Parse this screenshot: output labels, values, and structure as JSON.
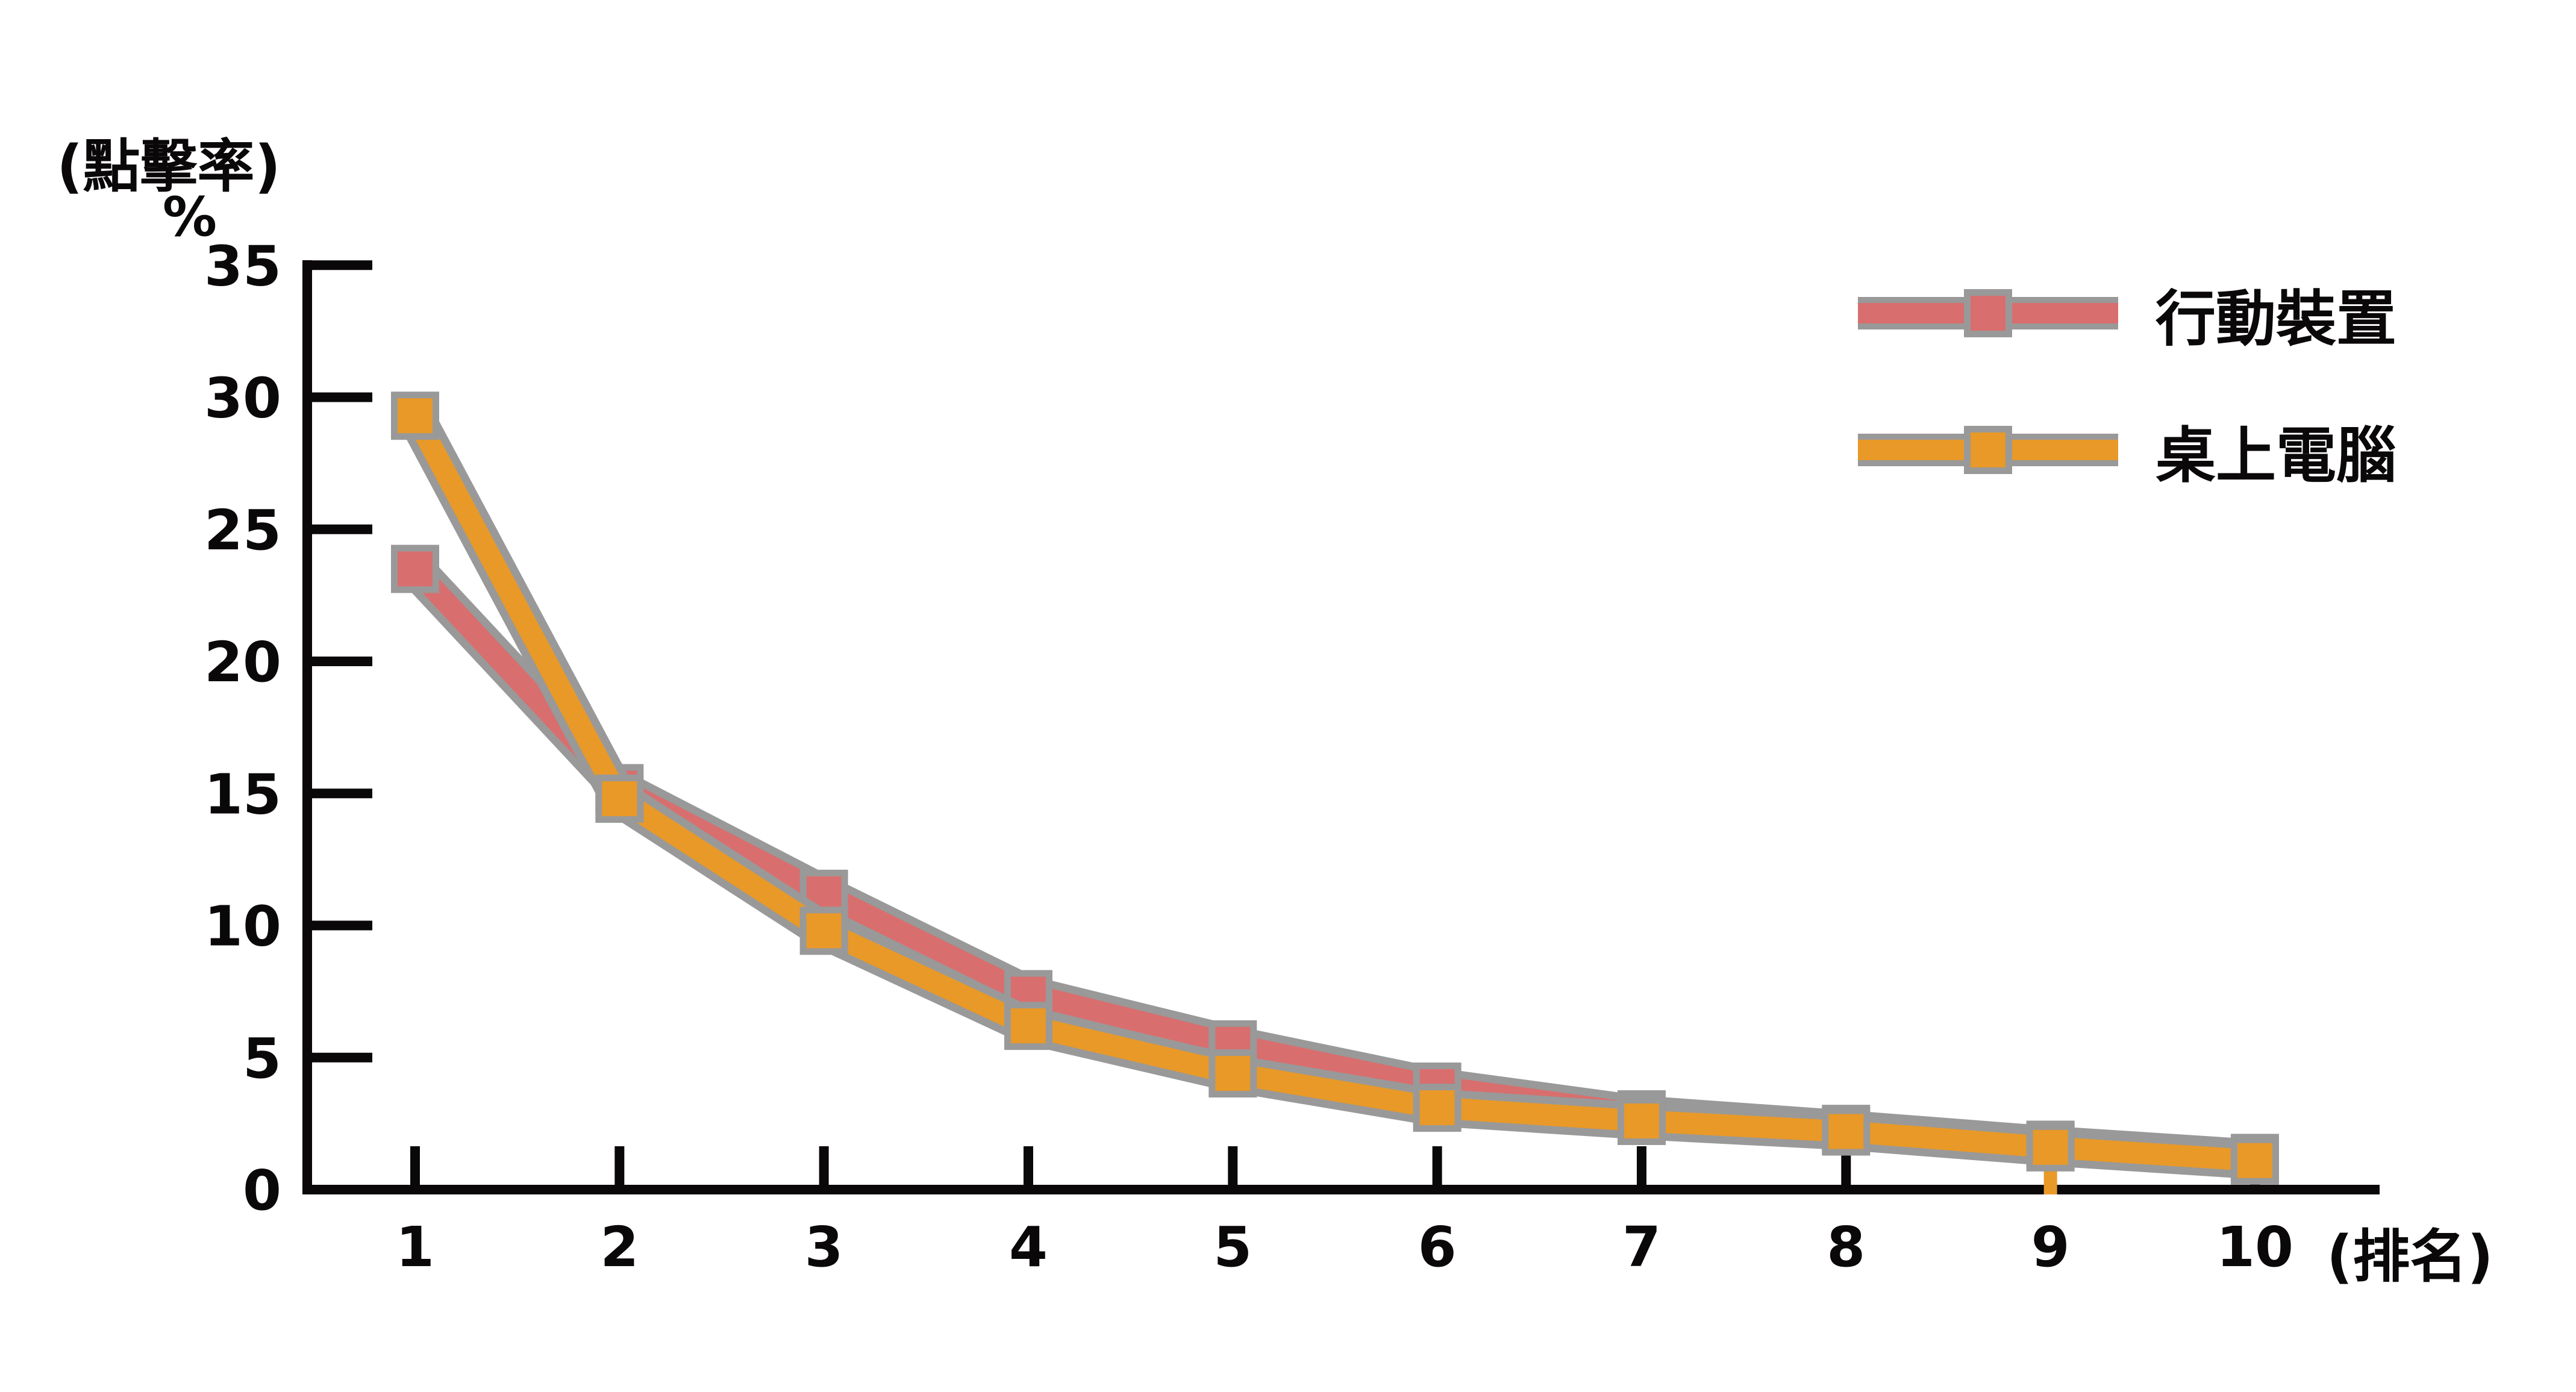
{
  "chart_data": {
    "type": "line",
    "title": "",
    "y_axis_title": "(點擊率)",
    "y_axis_unit": "%",
    "x_axis_title": "(排名)",
    "x": [
      1,
      2,
      3,
      4,
      5,
      6,
      7,
      8,
      9,
      10
    ],
    "xtick_labels": [
      "1",
      "2",
      "3",
      "4",
      "5",
      "6",
      "7",
      "8",
      "9",
      "10"
    ],
    "yticks": [
      0,
      5,
      10,
      15,
      20,
      25,
      30,
      35
    ],
    "ylim": [
      0,
      35
    ],
    "grid": false,
    "marker": "square",
    "legend_position": "top-right",
    "axis_color": "#0a0808",
    "outline_color": "#999999",
    "background_color": "#ffffff",
    "orange_tick_anomaly_rank": 9,
    "series": [
      {
        "name": "行動裝置",
        "color": "#d96e6e",
        "values": [
          23.5,
          15.2,
          11.2,
          7.4,
          5.5,
          3.9,
          2.85,
          2.3,
          1.7,
          1.2
        ]
      },
      {
        "name": "桌上電腦",
        "color": "#e89928",
        "values": [
          29.3,
          14.8,
          9.8,
          6.2,
          4.4,
          3.1,
          2.6,
          2.2,
          1.6,
          1.1
        ]
      }
    ]
  }
}
